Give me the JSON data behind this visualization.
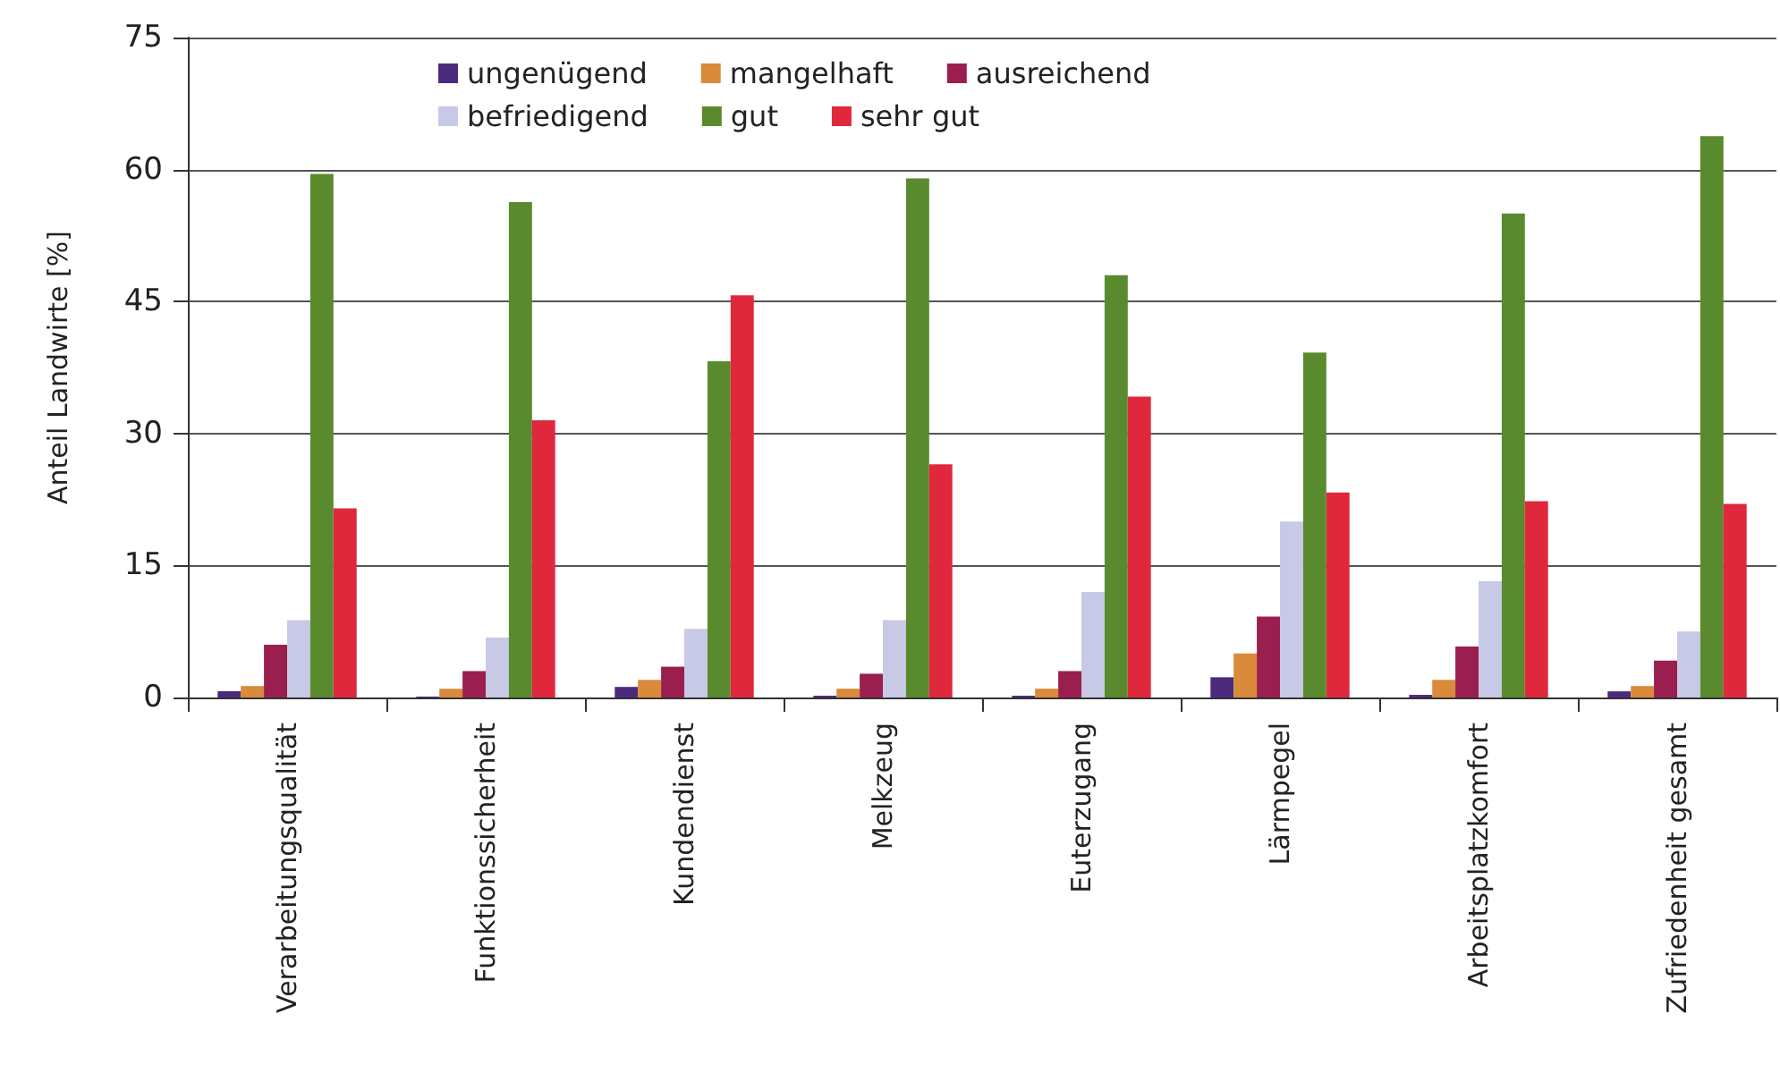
{
  "chart_data": {
    "type": "bar",
    "ylabel": "Anteil Landwirte [%]",
    "categories": [
      "Verarbeitungsqualität",
      "Funktionssicherheit",
      "Kundendienst",
      "Melkzeug",
      "Euterzugang",
      "Lärmpegel",
      "Arbeitsplatzkomfort",
      "Zufriedenheit gesamt"
    ],
    "series": [
      {
        "name": "ungenügend",
        "color": "#4b2a7e",
        "values": [
          0.7,
          0.1,
          1.2,
          0.2,
          0.2,
          2.3,
          0.3,
          0.7
        ]
      },
      {
        "name": "mangelhaft",
        "color": "#d98a3a",
        "values": [
          1.3,
          1,
          2,
          1,
          1,
          5,
          2,
          1.3
        ]
      },
      {
        "name": "ausreichend",
        "color": "#9b1f4e",
        "values": [
          6,
          3,
          3.5,
          2.7,
          3,
          9.2,
          5.8,
          4.2
        ]
      },
      {
        "name": "befriedigend",
        "color": "#c8c9e6",
        "values": [
          8.8,
          6.8,
          7.8,
          8.8,
          12,
          20,
          13.2,
          7.5
        ]
      },
      {
        "name": "gut",
        "color": "#5a8a2e",
        "values": [
          59.5,
          56.3,
          38.2,
          59,
          48,
          39.2,
          55,
          63.8
        ]
      },
      {
        "name": "sehr gut",
        "color": "#e0283c",
        "values": [
          21.5,
          31.5,
          45.7,
          26.5,
          34.2,
          23.3,
          22.3,
          22
        ]
      }
    ],
    "ylim": [
      0,
      75
    ],
    "yticks": [
      0,
      15,
      30,
      45,
      60,
      75
    ],
    "grid": "y",
    "legend": "top"
  }
}
